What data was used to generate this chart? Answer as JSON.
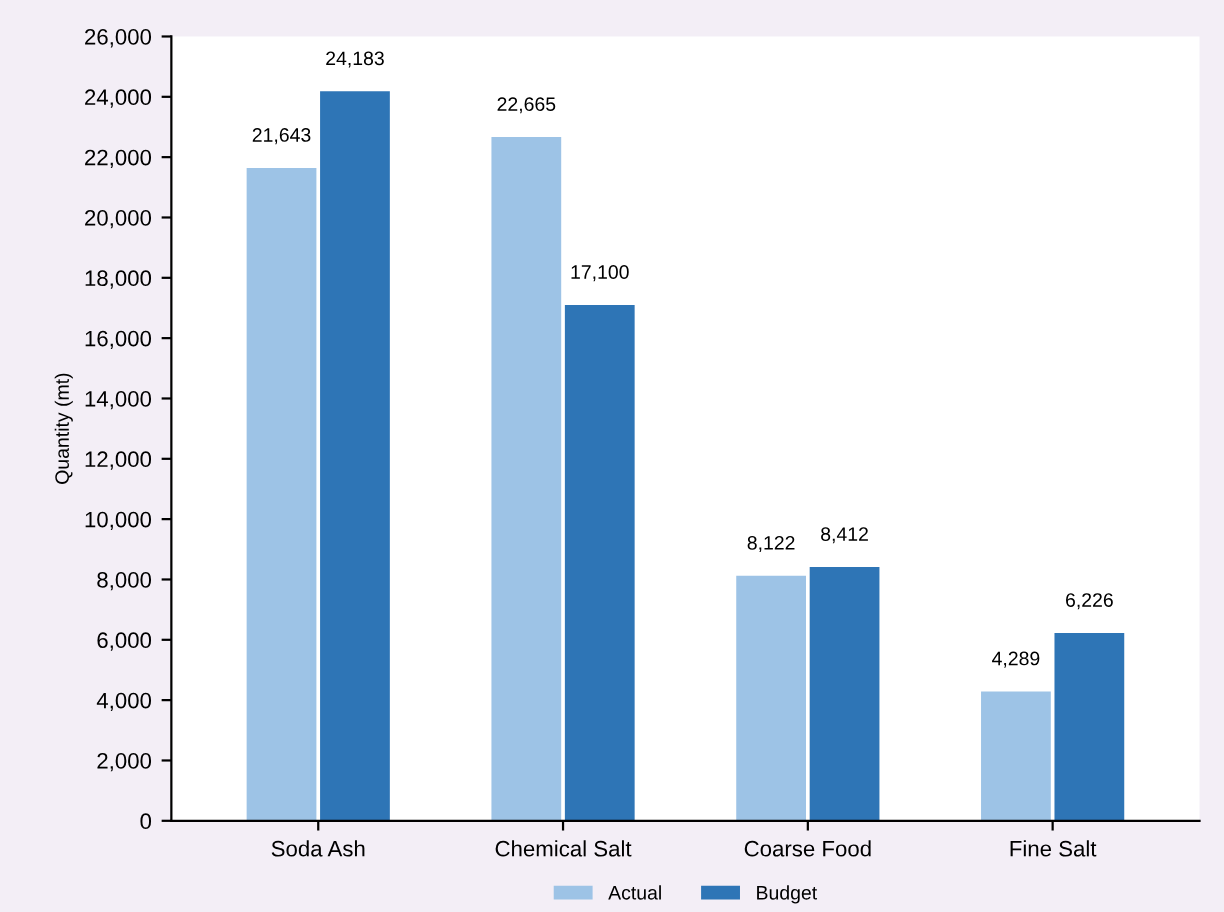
{
  "chart_data": {
    "type": "bar",
    "ylabel": "Quantity (mt)",
    "categories": [
      "Soda Ash",
      "Chemical Salt",
      "Coarse Food",
      "Fine Salt"
    ],
    "series": [
      {
        "name": "Actual",
        "color": "#9dc3e6",
        "values": [
          21643,
          22665,
          8122,
          4289
        ],
        "value_labels": [
          "21,643",
          "22,665",
          "8,122",
          "4,289"
        ]
      },
      {
        "name": "Budget",
        "color": "#2e75b6",
        "values": [
          24183,
          17100,
          8412,
          6226
        ],
        "value_labels": [
          "24,183",
          "17,100",
          "8,412",
          "6,226"
        ]
      }
    ],
    "ylim": [
      0,
      26000
    ],
    "yticks": [
      0,
      {
        "value": 2000,
        "label": "2,000"
      },
      {
        "value": 4000,
        "label": "4,000"
      },
      {
        "value": 6000,
        "label": "6,000"
      },
      {
        "value": 8000,
        "label": "8,000"
      },
      {
        "value": 10000,
        "label": "10,000"
      },
      {
        "value": 12000,
        "label": "12,000"
      },
      {
        "value": 14000,
        "label": "14,000"
      },
      {
        "value": 16000,
        "label": "16,000"
      },
      {
        "value": 18000,
        "label": "18,000"
      },
      {
        "value": 20000,
        "label": "20,000"
      },
      {
        "value": 22000,
        "label": "22,000"
      },
      {
        "value": 24000,
        "label": "24,000"
      },
      {
        "value": 26000,
        "label": "26,000"
      }
    ],
    "grid": false,
    "legend": "bottom"
  }
}
